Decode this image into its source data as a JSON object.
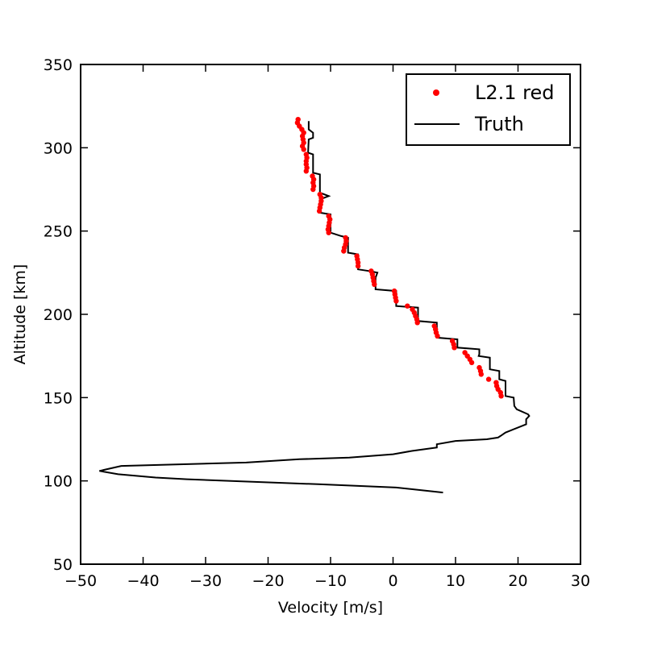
{
  "chart_data": {
    "type": "line",
    "xlabel": "Velocity [m/s]",
    "ylabel": "Altitude [km]",
    "xlim": [
      -50,
      30
    ],
    "ylim": [
      50,
      350
    ],
    "xticks": [
      -50,
      -40,
      -30,
      -20,
      -10,
      0,
      10,
      20,
      30
    ],
    "xtick_labels": [
      "−50",
      "−40",
      "−30",
      "−20",
      "−10",
      "0",
      "10",
      "20",
      "30"
    ],
    "yticks": [
      50,
      100,
      150,
      200,
      250,
      300,
      350
    ],
    "ytick_labels": [
      "50",
      "100",
      "150",
      "200",
      "250",
      "300",
      "350"
    ],
    "grid": false,
    "legend": {
      "placement": "top-right",
      "entries": [
        {
          "label": "L2.1 red",
          "marker": "point",
          "color": "#ff0000"
        },
        {
          "label": "Truth",
          "marker": "line",
          "color": "#000000"
        }
      ]
    },
    "series": [
      {
        "name": "L2.1 red",
        "kind": "scatter",
        "color": "#ff0000",
        "points": [
          [
            -15.2,
            317
          ],
          [
            -15.3,
            315
          ],
          [
            -15.0,
            313
          ],
          [
            -14.6,
            311
          ],
          [
            -14.3,
            309
          ],
          [
            -14.5,
            307
          ],
          [
            -14.4,
            305
          ],
          [
            -14.3,
            303
          ],
          [
            -14.5,
            301
          ],
          [
            -14.3,
            299
          ],
          [
            -13.9,
            296
          ],
          [
            -13.8,
            294
          ],
          [
            -13.9,
            292
          ],
          [
            -13.9,
            290
          ],
          [
            -13.8,
            288
          ],
          [
            -13.9,
            286
          ],
          [
            -12.9,
            283
          ],
          [
            -12.7,
            281
          ],
          [
            -12.8,
            279
          ],
          [
            -12.7,
            277
          ],
          [
            -12.8,
            275
          ],
          [
            -11.7,
            272
          ],
          [
            -11.5,
            270
          ],
          [
            -11.5,
            268
          ],
          [
            -11.6,
            266
          ],
          [
            -11.7,
            264
          ],
          [
            -11.8,
            262
          ],
          [
            -10.3,
            259
          ],
          [
            -10.1,
            257
          ],
          [
            -10.2,
            255
          ],
          [
            -10.3,
            253
          ],
          [
            -10.4,
            251
          ],
          [
            -10.3,
            249
          ],
          [
            -7.6,
            246
          ],
          [
            -7.5,
            244
          ],
          [
            -7.6,
            242
          ],
          [
            -7.8,
            240
          ],
          [
            -7.9,
            238
          ],
          [
            -5.8,
            235
          ],
          [
            -5.7,
            233
          ],
          [
            -5.6,
            231
          ],
          [
            -5.6,
            229
          ],
          [
            -3.5,
            226
          ],
          [
            -3.3,
            224
          ],
          [
            -3.2,
            222
          ],
          [
            -3.1,
            220
          ],
          [
            -3.0,
            218
          ],
          [
            0.2,
            214
          ],
          [
            0.3,
            212
          ],
          [
            0.4,
            210
          ],
          [
            0.5,
            208
          ],
          [
            2.3,
            205
          ],
          [
            3.1,
            203
          ],
          [
            3.4,
            201
          ],
          [
            3.6,
            199
          ],
          [
            3.8,
            197
          ],
          [
            3.9,
            195
          ],
          [
            6.6,
            193
          ],
          [
            6.8,
            191
          ],
          [
            6.9,
            189
          ],
          [
            7.1,
            187
          ],
          [
            9.5,
            184
          ],
          [
            9.7,
            182
          ],
          [
            9.8,
            180
          ],
          [
            11.5,
            177
          ],
          [
            11.9,
            175
          ],
          [
            12.3,
            173
          ],
          [
            12.6,
            171
          ],
          [
            13.8,
            168
          ],
          [
            14.0,
            166
          ],
          [
            14.1,
            164
          ],
          [
            15.3,
            161
          ],
          [
            16.5,
            159
          ],
          [
            16.6,
            157
          ],
          [
            16.8,
            155
          ],
          [
            17.2,
            153
          ],
          [
            17.3,
            151
          ]
        ]
      },
      {
        "name": "Truth",
        "kind": "line",
        "color": "#000000",
        "points": [
          [
            -13.5,
            316
          ],
          [
            -13.5,
            311
          ],
          [
            -12.8,
            309
          ],
          [
            -12.8,
            306
          ],
          [
            -13.5,
            305
          ],
          [
            -13.6,
            297
          ],
          [
            -12.8,
            296
          ],
          [
            -12.8,
            285
          ],
          [
            -11.7,
            284
          ],
          [
            -11.7,
            273
          ],
          [
            -10.3,
            271
          ],
          [
            -11.7,
            269
          ],
          [
            -11.7,
            261
          ],
          [
            -10.0,
            260
          ],
          [
            -10.0,
            249
          ],
          [
            -8.3,
            247
          ],
          [
            -7.2,
            246
          ],
          [
            -7.2,
            237
          ],
          [
            -5.6,
            236
          ],
          [
            -5.6,
            227
          ],
          [
            -3.8,
            226
          ],
          [
            -2.5,
            225
          ],
          [
            -2.8,
            222
          ],
          [
            -2.8,
            215
          ],
          [
            0.5,
            214
          ],
          [
            0.5,
            205
          ],
          [
            4.0,
            204
          ],
          [
            4.0,
            196
          ],
          [
            7.0,
            195
          ],
          [
            7.0,
            186
          ],
          [
            10.3,
            185
          ],
          [
            10.3,
            180
          ],
          [
            13.8,
            179
          ],
          [
            13.8,
            176
          ],
          [
            13.7,
            175
          ],
          [
            15.5,
            174
          ],
          [
            15.5,
            167
          ],
          [
            17.0,
            166
          ],
          [
            17.0,
            161
          ],
          [
            18.0,
            160
          ],
          [
            18.0,
            151
          ],
          [
            19.3,
            150
          ],
          [
            19.4,
            145
          ],
          [
            19.8,
            143
          ],
          [
            21.6,
            140
          ],
          [
            21.8,
            139
          ],
          [
            21.3,
            137
          ],
          [
            21.3,
            134
          ],
          [
            18.0,
            129
          ],
          [
            17.2,
            127
          ],
          [
            16.8,
            126
          ],
          [
            15.0,
            125
          ],
          [
            10.0,
            124
          ],
          [
            7.0,
            122
          ],
          [
            7.0,
            120
          ],
          [
            5.0,
            119
          ],
          [
            3.0,
            118
          ],
          [
            0.0,
            116
          ],
          [
            -7.0,
            114
          ],
          [
            -15.0,
            113
          ],
          [
            -23.5,
            111
          ],
          [
            -43.5,
            109
          ],
          [
            -47.0,
            106
          ],
          [
            -44.0,
            104
          ],
          [
            -38.0,
            102
          ],
          [
            -33.0,
            101
          ],
          [
            -12.0,
            98
          ],
          [
            0.5,
            96
          ],
          [
            8.0,
            93
          ]
        ]
      }
    ]
  }
}
